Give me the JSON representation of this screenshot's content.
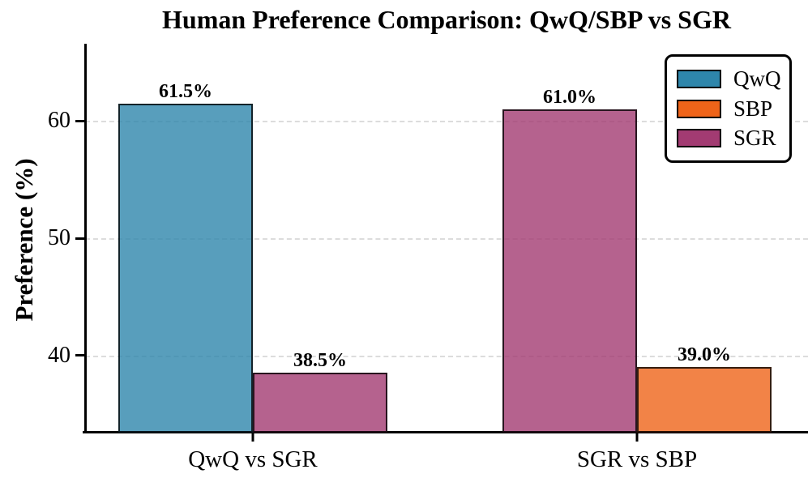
{
  "chart_data": {
    "type": "bar",
    "title": "Human Preference Comparison: QwQ/SBP vs SGR",
    "ylabel": "Preference (%)",
    "xlabel": "",
    "ylim": [
      33.4,
      66.6
    ],
    "yticks": [
      40,
      50,
      60
    ],
    "grid": "horizontal-dashed",
    "bar_alpha": 0.8,
    "legend_position": "upper right",
    "legend_entries": [
      {
        "label": "QwQ",
        "color": "#2E86AB"
      },
      {
        "label": "SBP",
        "color": "#EF6419"
      },
      {
        "label": "SGR",
        "color": "#A23B72"
      }
    ],
    "groups": [
      {
        "category": "QwQ vs SGR",
        "bars": [
          {
            "series": "QwQ",
            "value": 61.5,
            "label": "61.5%"
          },
          {
            "series": "SGR",
            "value": 38.5,
            "label": "38.5%"
          }
        ]
      },
      {
        "category": "SGR vs SBP",
        "bars": [
          {
            "series": "SGR",
            "value": 61.0,
            "label": "61.0%"
          },
          {
            "series": "SBP",
            "value": 39.0,
            "label": "39.0%"
          }
        ]
      }
    ]
  },
  "colors": {
    "bar_edge": "rgba(0,0,0,0.78)",
    "gridline": "#dcdcdc",
    "axis": "#000000",
    "text": "#000000",
    "background": "#ffffff"
  }
}
